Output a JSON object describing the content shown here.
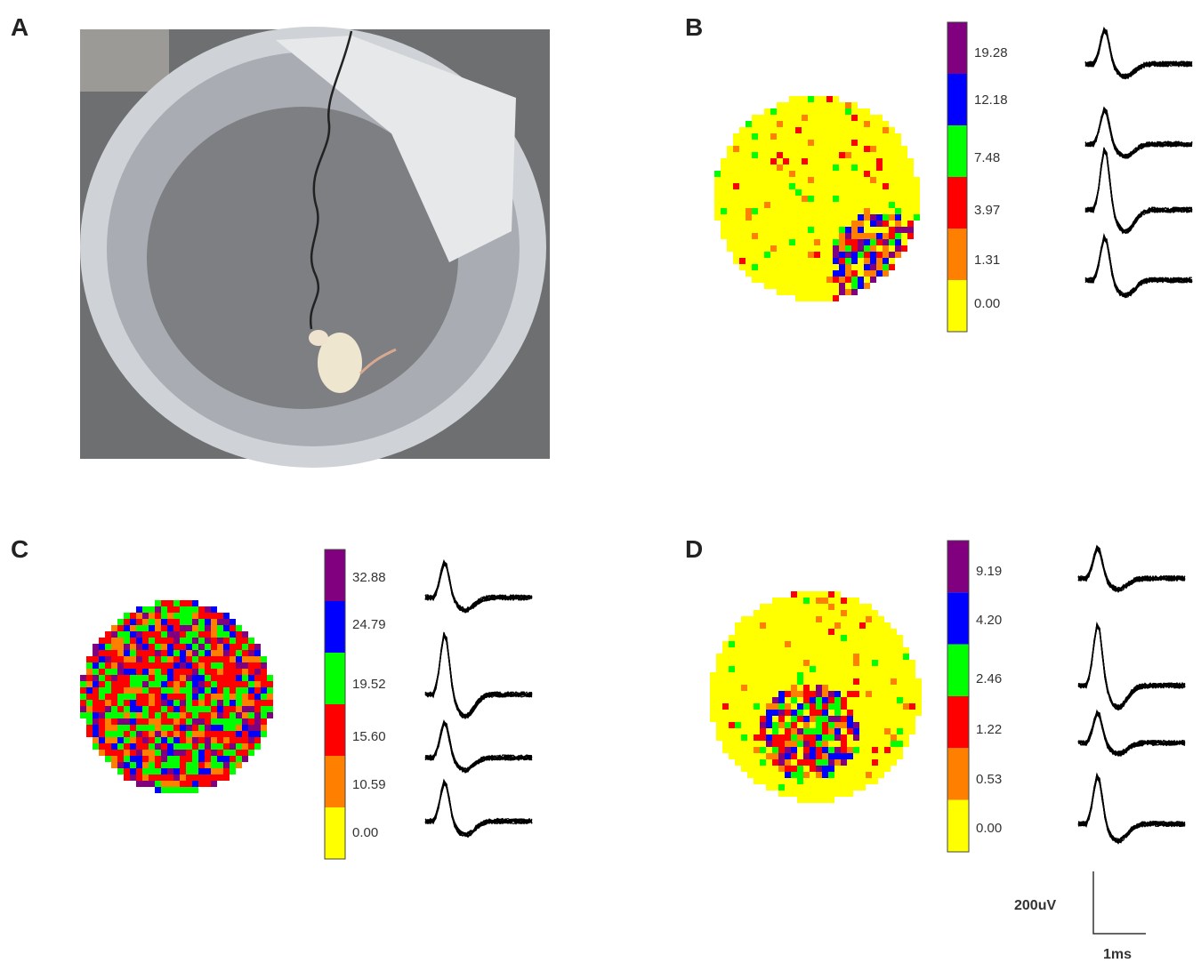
{
  "panels": [
    {
      "label": "A"
    },
    {
      "label": "B",
      "colorbar": [
        "19.28",
        "12.18",
        "7.48",
        "3.97",
        "1.31",
        "0.00"
      ]
    },
    {
      "label": "C",
      "colorbar": [
        "32.88",
        "24.79",
        "19.52",
        "15.60",
        "10.59",
        "0.00"
      ]
    },
    {
      "label": "D",
      "colorbar": [
        "9.19",
        "4.20",
        "2.46",
        "1.22",
        "0.53",
        "0.00"
      ]
    }
  ],
  "scale_bar": {
    "amplitude": "200uV",
    "time": "1ms"
  }
}
